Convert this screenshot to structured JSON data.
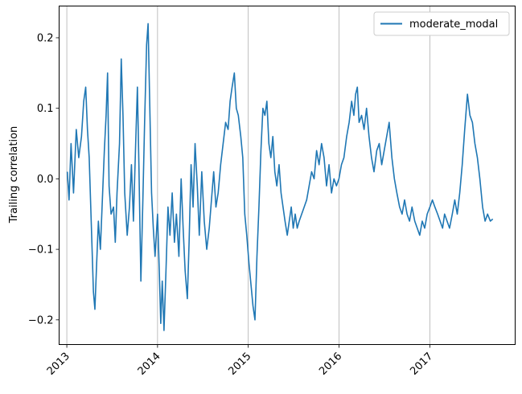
{
  "chart_data": {
    "type": "line",
    "title": "",
    "xlabel": "",
    "ylabel": "Trailing correlation",
    "x_axis": {
      "kind": "date",
      "range": [
        "2012-12-01",
        "2017-12-10"
      ],
      "tick_labels": [
        "2013",
        "2014",
        "2015",
        "2016",
        "2017"
      ],
      "tick_dates": [
        "2013-01-01",
        "2014-01-01",
        "2015-01-01",
        "2016-01-01",
        "2017-01-01"
      ],
      "tick_label_rotation_deg": 45
    },
    "y_axis": {
      "range": [
        -0.235,
        0.245
      ],
      "ticks": [
        -0.2,
        -0.1,
        0.0,
        0.1,
        0.2
      ],
      "tick_labels": [
        "−0.2",
        "−0.1",
        "0.0",
        "0.1",
        "0.2"
      ]
    },
    "grid": {
      "x": true,
      "y": false,
      "color": "#b0b0b0"
    },
    "legend": {
      "position": "top-right"
    },
    "series": [
      {
        "name": "moderate_modal",
        "color": "#1f77b4",
        "points": [
          [
            "2013-01-03",
            0.01
          ],
          [
            "2013-01-10",
            -0.03
          ],
          [
            "2013-01-18",
            0.05
          ],
          [
            "2013-01-28",
            -0.02
          ],
          [
            "2013-02-08",
            0.07
          ],
          [
            "2013-02-18",
            0.03
          ],
          [
            "2013-03-01",
            0.06
          ],
          [
            "2013-03-10",
            0.11
          ],
          [
            "2013-03-18",
            0.13
          ],
          [
            "2013-03-25",
            0.07
          ],
          [
            "2013-04-01",
            0.03
          ],
          [
            "2013-04-10",
            -0.07
          ],
          [
            "2013-04-18",
            -0.16
          ],
          [
            "2013-04-24",
            -0.185
          ],
          [
            "2013-05-01",
            -0.12
          ],
          [
            "2013-05-08",
            -0.06
          ],
          [
            "2013-05-16",
            -0.1
          ],
          [
            "2013-05-24",
            -0.03
          ],
          [
            "2013-06-01",
            0.04
          ],
          [
            "2013-06-08",
            0.09
          ],
          [
            "2013-06-14",
            0.15
          ],
          [
            "2013-06-20",
            -0.01
          ],
          [
            "2013-06-28",
            -0.05
          ],
          [
            "2013-07-08",
            -0.04
          ],
          [
            "2013-07-15",
            -0.09
          ],
          [
            "2013-07-22",
            -0.02
          ],
          [
            "2013-08-01",
            0.05
          ],
          [
            "2013-08-08",
            0.17
          ],
          [
            "2013-08-15",
            0.09
          ],
          [
            "2013-08-22",
            -0.02
          ],
          [
            "2013-09-01",
            -0.08
          ],
          [
            "2013-09-10",
            -0.04
          ],
          [
            "2013-09-18",
            0.02
          ],
          [
            "2013-09-26",
            -0.06
          ],
          [
            "2013-10-05",
            0.05
          ],
          [
            "2013-10-12",
            0.13
          ],
          [
            "2013-10-18",
            0.02
          ],
          [
            "2013-10-26",
            -0.145
          ],
          [
            "2013-11-03",
            -0.03
          ],
          [
            "2013-11-10",
            0.08
          ],
          [
            "2013-11-18",
            0.19
          ],
          [
            "2013-11-24",
            0.22
          ],
          [
            "2013-12-01",
            0.1
          ],
          [
            "2013-12-08",
            -0.02
          ],
          [
            "2013-12-15",
            -0.07
          ],
          [
            "2013-12-22",
            -0.11
          ],
          [
            "2014-01-01",
            -0.05
          ],
          [
            "2014-01-08",
            -0.13
          ],
          [
            "2014-01-14",
            -0.205
          ],
          [
            "2014-01-20",
            -0.145
          ],
          [
            "2014-01-27",
            -0.215
          ],
          [
            "2014-02-04",
            -0.13
          ],
          [
            "2014-02-12",
            -0.04
          ],
          [
            "2014-02-20",
            -0.08
          ],
          [
            "2014-03-01",
            -0.02
          ],
          [
            "2014-03-10",
            -0.09
          ],
          [
            "2014-03-18",
            -0.05
          ],
          [
            "2014-03-28",
            -0.11
          ],
          [
            "2014-04-06",
            0.0
          ],
          [
            "2014-04-14",
            -0.07
          ],
          [
            "2014-04-22",
            -0.13
          ],
          [
            "2014-05-01",
            -0.17
          ],
          [
            "2014-05-08",
            -0.09
          ],
          [
            "2014-05-16",
            0.02
          ],
          [
            "2014-05-24",
            -0.04
          ],
          [
            "2014-06-01",
            0.05
          ],
          [
            "2014-06-10",
            -0.01
          ],
          [
            "2014-06-18",
            -0.08
          ],
          [
            "2014-06-28",
            0.01
          ],
          [
            "2014-07-08",
            -0.06
          ],
          [
            "2014-07-18",
            -0.1
          ],
          [
            "2014-07-28",
            -0.07
          ],
          [
            "2014-08-06",
            -0.03
          ],
          [
            "2014-08-15",
            0.01
          ],
          [
            "2014-08-24",
            -0.04
          ],
          [
            "2014-09-02",
            -0.02
          ],
          [
            "2014-09-12",
            0.02
          ],
          [
            "2014-09-22",
            0.05
          ],
          [
            "2014-10-02",
            0.08
          ],
          [
            "2014-10-12",
            0.07
          ],
          [
            "2014-10-20",
            0.11
          ],
          [
            "2014-10-28",
            0.13
          ],
          [
            "2014-11-06",
            0.15
          ],
          [
            "2014-11-14",
            0.1
          ],
          [
            "2014-11-22",
            0.09
          ],
          [
            "2014-12-02",
            0.06
          ],
          [
            "2014-12-10",
            0.03
          ],
          [
            "2014-12-18",
            -0.05
          ],
          [
            "2014-12-26",
            -0.08
          ],
          [
            "2015-01-04",
            -0.12
          ],
          [
            "2015-01-12",
            -0.15
          ],
          [
            "2015-01-20",
            -0.18
          ],
          [
            "2015-01-28",
            -0.2
          ],
          [
            "2015-02-05",
            -0.11
          ],
          [
            "2015-02-13",
            -0.04
          ],
          [
            "2015-02-21",
            0.04
          ],
          [
            "2015-03-01",
            0.1
          ],
          [
            "2015-03-09",
            0.09
          ],
          [
            "2015-03-17",
            0.11
          ],
          [
            "2015-03-25",
            0.05
          ],
          [
            "2015-04-02",
            0.03
          ],
          [
            "2015-04-10",
            0.06
          ],
          [
            "2015-04-18",
            0.01
          ],
          [
            "2015-04-26",
            -0.01
          ],
          [
            "2015-05-05",
            0.02
          ],
          [
            "2015-05-13",
            -0.02
          ],
          [
            "2015-05-21",
            -0.04
          ],
          [
            "2015-05-29",
            -0.06
          ],
          [
            "2015-06-07",
            -0.08
          ],
          [
            "2015-06-15",
            -0.06
          ],
          [
            "2015-06-23",
            -0.04
          ],
          [
            "2015-07-01",
            -0.07
          ],
          [
            "2015-07-09",
            -0.05
          ],
          [
            "2015-07-17",
            -0.07
          ],
          [
            "2015-07-25",
            -0.06
          ],
          [
            "2015-08-04",
            -0.05
          ],
          [
            "2015-08-14",
            -0.04
          ],
          [
            "2015-08-24",
            -0.03
          ],
          [
            "2015-09-03",
            -0.01
          ],
          [
            "2015-09-13",
            0.01
          ],
          [
            "2015-09-23",
            0.0
          ],
          [
            "2015-10-03",
            0.04
          ],
          [
            "2015-10-13",
            0.02
          ],
          [
            "2015-10-23",
            0.05
          ],
          [
            "2015-11-02",
            0.03
          ],
          [
            "2015-11-12",
            -0.01
          ],
          [
            "2015-11-22",
            0.02
          ],
          [
            "2015-12-02",
            -0.02
          ],
          [
            "2015-12-12",
            0.0
          ],
          [
            "2015-12-22",
            -0.01
          ],
          [
            "2016-01-01",
            0.0
          ],
          [
            "2016-01-11",
            0.02
          ],
          [
            "2016-01-21",
            0.03
          ],
          [
            "2016-02-01",
            0.06
          ],
          [
            "2016-02-11",
            0.08
          ],
          [
            "2016-02-21",
            0.11
          ],
          [
            "2016-03-01",
            0.09
          ],
          [
            "2016-03-08",
            0.12
          ],
          [
            "2016-03-15",
            0.13
          ],
          [
            "2016-03-22",
            0.08
          ],
          [
            "2016-04-01",
            0.09
          ],
          [
            "2016-04-11",
            0.07
          ],
          [
            "2016-04-21",
            0.1
          ],
          [
            "2016-05-01",
            0.06
          ],
          [
            "2016-05-11",
            0.03
          ],
          [
            "2016-05-21",
            0.01
          ],
          [
            "2016-06-01",
            0.04
          ],
          [
            "2016-06-11",
            0.05
          ],
          [
            "2016-06-21",
            0.02
          ],
          [
            "2016-07-01",
            0.04
          ],
          [
            "2016-07-11",
            0.06
          ],
          [
            "2016-07-21",
            0.08
          ],
          [
            "2016-08-01",
            0.03
          ],
          [
            "2016-08-11",
            0.0
          ],
          [
            "2016-08-21",
            -0.02
          ],
          [
            "2016-09-01",
            -0.04
          ],
          [
            "2016-09-11",
            -0.05
          ],
          [
            "2016-09-21",
            -0.03
          ],
          [
            "2016-10-01",
            -0.05
          ],
          [
            "2016-10-11",
            -0.06
          ],
          [
            "2016-10-21",
            -0.04
          ],
          [
            "2016-11-01",
            -0.06
          ],
          [
            "2016-11-11",
            -0.07
          ],
          [
            "2016-11-21",
            -0.08
          ],
          [
            "2016-12-01",
            -0.06
          ],
          [
            "2016-12-11",
            -0.07
          ],
          [
            "2016-12-21",
            -0.05
          ],
          [
            "2017-01-01",
            -0.04
          ],
          [
            "2017-01-11",
            -0.03
          ],
          [
            "2017-01-21",
            -0.04
          ],
          [
            "2017-02-01",
            -0.05
          ],
          [
            "2017-02-11",
            -0.06
          ],
          [
            "2017-02-21",
            -0.07
          ],
          [
            "2017-03-01",
            -0.05
          ],
          [
            "2017-03-11",
            -0.06
          ],
          [
            "2017-03-21",
            -0.07
          ],
          [
            "2017-04-01",
            -0.05
          ],
          [
            "2017-04-11",
            -0.03
          ],
          [
            "2017-04-21",
            -0.05
          ],
          [
            "2017-05-01",
            -0.02
          ],
          [
            "2017-05-11",
            0.02
          ],
          [
            "2017-05-21",
            0.07
          ],
          [
            "2017-06-01",
            0.12
          ],
          [
            "2017-06-11",
            0.09
          ],
          [
            "2017-06-21",
            0.08
          ],
          [
            "2017-07-01",
            0.05
          ],
          [
            "2017-07-11",
            0.03
          ],
          [
            "2017-07-21",
            0.0
          ],
          [
            "2017-08-01",
            -0.04
          ],
          [
            "2017-08-11",
            -0.06
          ],
          [
            "2017-08-21",
            -0.05
          ],
          [
            "2017-09-01",
            -0.06
          ],
          [
            "2017-09-11",
            -0.057
          ]
        ]
      }
    ]
  }
}
